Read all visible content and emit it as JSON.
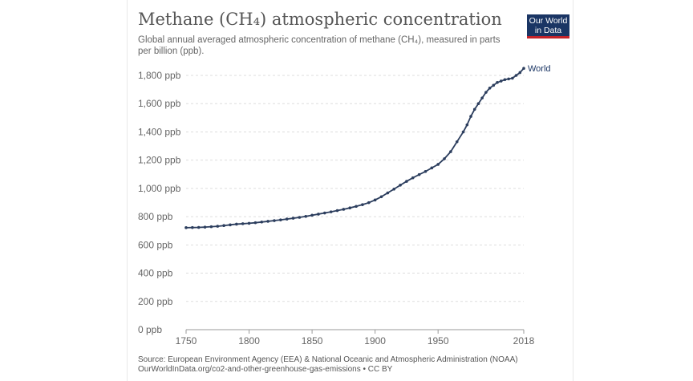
{
  "header": {
    "title": "Methane (CH₄) atmospheric concentration",
    "subtitle": "Global annual averaged atmospheric concentration of methane (CH₄), measured in parts per billion (ppb).",
    "logo_line1": "Our World",
    "logo_line2": "in Data"
  },
  "footer": {
    "source_line1": "Source: European Environment Agency (EEA) & National Oceanic and Atmospheric Administration (NOAA)",
    "source_line2": "OurWorldInData.org/co2-and-other-greenhouse-gas-emissions • CC BY"
  },
  "colors": {
    "line": "#2c3e5e",
    "grid": "#dddddd",
    "logo_bg": "#1a3564",
    "logo_accent": "#c4232a"
  },
  "chart_data": {
    "type": "line",
    "title": "Methane (CH₄) atmospheric concentration",
    "xlim": [
      1750,
      2018
    ],
    "ylim": [
      0,
      1800
    ],
    "x_ticks": [
      {
        "value": 1750,
        "label": "1750"
      },
      {
        "value": 1800,
        "label": "1800"
      },
      {
        "value": 1850,
        "label": "1850"
      },
      {
        "value": 1900,
        "label": "1900"
      },
      {
        "value": 1950,
        "label": "1950"
      },
      {
        "value": 2018,
        "label": "2018"
      }
    ],
    "y_ticks": [
      {
        "value": 0,
        "label": "0 ppb"
      },
      {
        "value": 200,
        "label": "200 ppb"
      },
      {
        "value": 400,
        "label": "400 ppb"
      },
      {
        "value": 600,
        "label": "600 ppb"
      },
      {
        "value": 800,
        "label": "800 ppb"
      },
      {
        "value": 1000,
        "label": "1,000 ppb"
      },
      {
        "value": 1200,
        "label": "1,200 ppb"
      },
      {
        "value": 1400,
        "label": "1,400 ppb"
      },
      {
        "value": 1600,
        "label": "1,600 ppb"
      },
      {
        "value": 1800,
        "label": "1,800 ppb"
      }
    ],
    "grid": true,
    "legend": "inline-right",
    "series": [
      {
        "name": "World",
        "x": [
          1750,
          1755,
          1760,
          1765,
          1770,
          1775,
          1780,
          1785,
          1790,
          1795,
          1800,
          1805,
          1810,
          1815,
          1820,
          1825,
          1830,
          1835,
          1840,
          1845,
          1850,
          1855,
          1860,
          1865,
          1870,
          1875,
          1880,
          1885,
          1890,
          1895,
          1900,
          1905,
          1910,
          1915,
          1920,
          1925,
          1930,
          1935,
          1940,
          1945,
          1950,
          1955,
          1960,
          1965,
          1970,
          1973,
          1976,
          1979,
          1982,
          1985,
          1988,
          1991,
          1994,
          1997,
          2000,
          2003,
          2006,
          2009,
          2012,
          2015,
          2018
        ],
        "values": [
          722,
          723,
          724,
          726,
          729,
          732,
          737,
          742,
          747,
          750,
          753,
          757,
          762,
          767,
          772,
          777,
          783,
          789,
          795,
          802,
          810,
          818,
          826,
          834,
          843,
          852,
          862,
          873,
          885,
          899,
          918,
          941,
          968,
          995,
          1023,
          1050,
          1075,
          1098,
          1120,
          1145,
          1170,
          1210,
          1260,
          1330,
          1400,
          1450,
          1510,
          1560,
          1600,
          1640,
          1680,
          1710,
          1730,
          1750,
          1760,
          1770,
          1775,
          1780,
          1800,
          1820,
          1850
        ]
      }
    ]
  }
}
